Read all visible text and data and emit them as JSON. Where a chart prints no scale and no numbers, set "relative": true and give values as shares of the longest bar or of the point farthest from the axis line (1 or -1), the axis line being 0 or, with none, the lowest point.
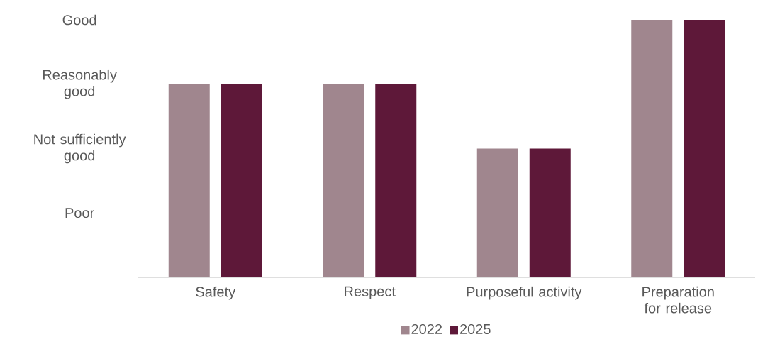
{
  "chart_data": {
    "type": "bar",
    "categories": [
      "Safety",
      "Respect",
      "Purposeful activity",
      "Preparation for release"
    ],
    "series": [
      {
        "name": "2022",
        "color": "#a0868e",
        "values": [
          0.75,
          0.75,
          0.5,
          1
        ]
      },
      {
        "name": "2025",
        "color": "#5e1839",
        "values": [
          0.75,
          0.75,
          0.5,
          1
        ]
      }
    ],
    "relative": true,
    "annotations": [
      "Good",
      "Reasonably good",
      "Not sufficiently good",
      "Poor"
    ],
    "grid": false,
    "legend": "bottom"
  }
}
